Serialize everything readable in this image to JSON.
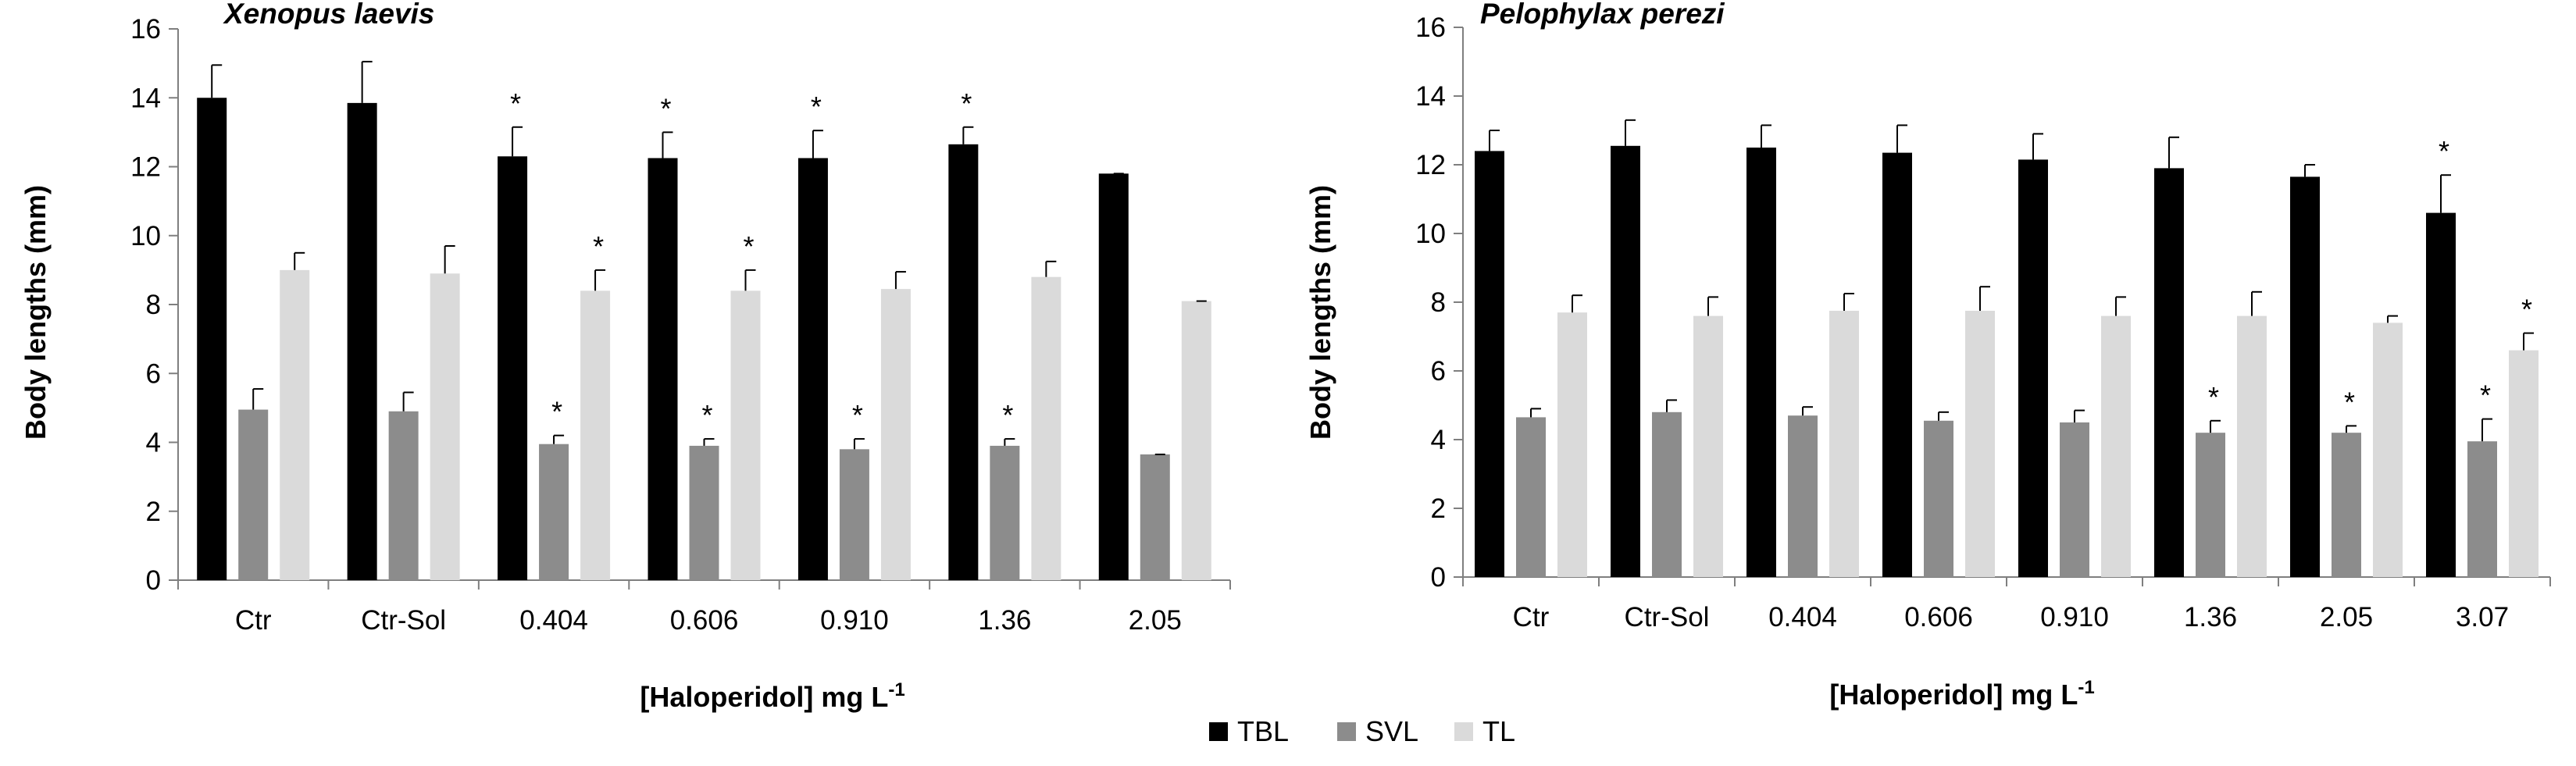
{
  "legend": [
    {
      "key": "tbl",
      "label": "TBL",
      "color": "#000000"
    },
    {
      "key": "svl",
      "label": "SVL",
      "color": "#8c8c8c"
    },
    {
      "key": "tl",
      "label": "TL",
      "color": "#dadada"
    }
  ],
  "chart_data": [
    {
      "type": "bar",
      "title": "Xenopus laevis",
      "ylabel": "Body lengths (mm)",
      "xlabel_main": "[Haloperidol]  mg L",
      "xlabel_sup": "-1",
      "ylim": [
        0,
        16
      ],
      "yticks": [
        0,
        2,
        4,
        6,
        8,
        10,
        12,
        14,
        16
      ],
      "grid": false,
      "legend_position": "bottom-center",
      "categories": [
        "Ctr",
        "Ctr-Sol",
        "0.404",
        "0.606",
        "0.910",
        "1.36",
        "2.05"
      ],
      "series": [
        {
          "name": "TBL",
          "values": [
            14.0,
            13.85,
            12.3,
            12.25,
            12.25,
            12.65,
            11.8
          ],
          "errors": [
            0.95,
            1.2,
            0.85,
            0.75,
            0.8,
            0.5,
            0.0
          ],
          "significant": [
            false,
            false,
            true,
            true,
            true,
            true,
            false
          ]
        },
        {
          "name": "SVL",
          "values": [
            4.95,
            4.9,
            3.95,
            3.9,
            3.8,
            3.9,
            3.65
          ],
          "errors": [
            0.6,
            0.55,
            0.25,
            0.2,
            0.3,
            0.2,
            0.0
          ],
          "significant": [
            false,
            false,
            true,
            true,
            true,
            true,
            false
          ]
        },
        {
          "name": "TL",
          "values": [
            9.0,
            8.9,
            8.4,
            8.4,
            8.45,
            8.8,
            8.1
          ],
          "errors": [
            0.5,
            0.8,
            0.6,
            0.6,
            0.5,
            0.45,
            0.0
          ],
          "significant": [
            false,
            false,
            true,
            true,
            false,
            false,
            false
          ]
        }
      ]
    },
    {
      "type": "bar",
      "title": "Pelophylax perezi",
      "ylabel": "Body lengths (mm)",
      "xlabel_main": "[Haloperidol]  mg L",
      "xlabel_sup": "-1",
      "ylim": [
        0,
        16
      ],
      "yticks": [
        0,
        2,
        4,
        6,
        8,
        10,
        12,
        14,
        16
      ],
      "grid": false,
      "legend_position": "bottom-center",
      "categories": [
        "Ctr",
        "Ctr-Sol",
        "0.404",
        "0.606",
        "0.910",
        "1.36",
        "2.05",
        "3.07"
      ],
      "series": [
        {
          "name": "TBL",
          "values": [
            12.4,
            12.55,
            12.5,
            12.35,
            12.15,
            11.9,
            11.65,
            10.6
          ],
          "errors": [
            0.6,
            0.75,
            0.65,
            0.8,
            0.75,
            0.9,
            0.35,
            1.1
          ],
          "significant": [
            false,
            false,
            false,
            false,
            false,
            false,
            false,
            true
          ]
        },
        {
          "name": "SVL",
          "values": [
            4.65,
            4.8,
            4.7,
            4.55,
            4.5,
            4.2,
            4.2,
            3.95
          ],
          "errors": [
            0.25,
            0.35,
            0.25,
            0.25,
            0.35,
            0.35,
            0.2,
            0.65
          ],
          "significant": [
            false,
            false,
            false,
            false,
            false,
            true,
            true,
            true
          ]
        },
        {
          "name": "TL",
          "values": [
            7.7,
            7.6,
            7.75,
            7.75,
            7.6,
            7.6,
            7.4,
            6.6
          ],
          "errors": [
            0.5,
            0.55,
            0.5,
            0.7,
            0.55,
            0.7,
            0.2,
            0.5
          ],
          "significant": [
            false,
            false,
            false,
            false,
            false,
            false,
            false,
            true
          ]
        }
      ]
    }
  ]
}
